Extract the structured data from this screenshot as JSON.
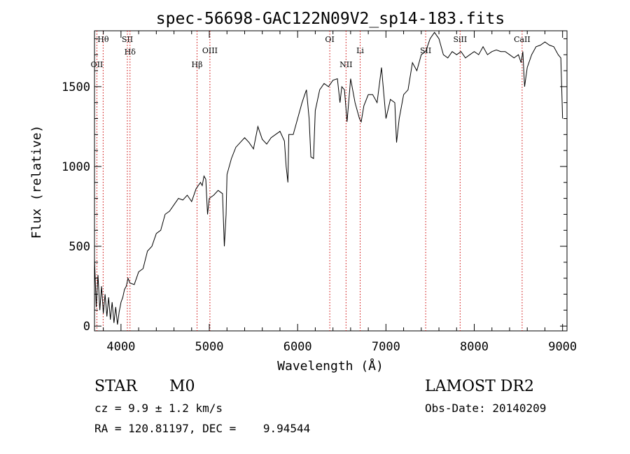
{
  "chart_data": {
    "type": "line",
    "title": "spec-56698-GAC122N09V2_sp14-183.fits",
    "xlabel": "Wavelength (Å)",
    "ylabel": "Flux (relative)",
    "xlim": [
      3700,
      9050
    ],
    "ylim": [
      -30,
      1850
    ],
    "xticks": [
      4000,
      5000,
      6000,
      7000,
      8000,
      9000
    ],
    "yticks": [
      0,
      500,
      1000,
      1500
    ],
    "grid": false,
    "line_color": "#000000",
    "marker_color": "#cc0000",
    "series": [
      {
        "x": [
          3700,
          3720,
          3740,
          3760,
          3780,
          3800,
          3820,
          3840,
          3860,
          3880,
          3900,
          3920,
          3940,
          3960,
          3980,
          4000,
          4020,
          4040,
          4060,
          4080,
          4100,
          4150,
          4200,
          4250,
          4300,
          4350,
          4400,
          4450,
          4500,
          4550,
          4600,
          4650,
          4700,
          4750,
          4800,
          4850,
          4900,
          4920,
          4940,
          4960,
          4980,
          5000,
          5050,
          5100,
          5150,
          5170,
          5190,
          5200,
          5250,
          5300,
          5350,
          5400,
          5450,
          5500,
          5550,
          5600,
          5650,
          5700,
          5750,
          5800,
          5850,
          5870,
          5890,
          5900,
          5950,
          6000,
          6050,
          6080,
          6100,
          6130,
          6150,
          6180,
          6200,
          6250,
          6300,
          6350,
          6400,
          6450,
          6480,
          6500,
          6530,
          6560,
          6600,
          6650,
          6700,
          6720,
          6750,
          6800,
          6850,
          6900,
          6950,
          7000,
          7050,
          7100,
          7120,
          7150,
          7200,
          7250,
          7300,
          7350,
          7400,
          7450,
          7500,
          7550,
          7600,
          7650,
          7700,
          7750,
          7800,
          7850,
          7900,
          7950,
          8000,
          8050,
          8100,
          8150,
          8200,
          8250,
          8300,
          8350,
          8400,
          8450,
          8500,
          8530,
          8550,
          8570,
          8600,
          8650,
          8700,
          8750,
          8800,
          8850,
          8900,
          8950,
          8980,
          9000
        ],
        "y": [
          420,
          120,
          320,
          100,
          250,
          80,
          200,
          60,
          180,
          40,
          150,
          20,
          120,
          10,
          90,
          150,
          180,
          230,
          250,
          300,
          270,
          260,
          340,
          360,
          470,
          500,
          580,
          600,
          700,
          720,
          760,
          800,
          790,
          820,
          780,
          860,
          900,
          880,
          940,
          920,
          700,
          800,
          820,
          850,
          830,
          500,
          700,
          950,
          1050,
          1120,
          1150,
          1180,
          1150,
          1110,
          1250,
          1170,
          1140,
          1180,
          1200,
          1220,
          1160,
          1000,
          900,
          1200,
          1200,
          1300,
          1400,
          1450,
          1480,
          1300,
          1060,
          1050,
          1350,
          1480,
          1520,
          1500,
          1540,
          1550,
          1400,
          1500,
          1480,
          1280,
          1550,
          1400,
          1300,
          1280,
          1380,
          1450,
          1450,
          1400,
          1620,
          1300,
          1420,
          1400,
          1150,
          1300,
          1450,
          1480,
          1650,
          1600,
          1700,
          1720,
          1800,
          1840,
          1800,
          1700,
          1680,
          1720,
          1700,
          1720,
          1680,
          1700,
          1720,
          1700,
          1750,
          1700,
          1720,
          1730,
          1720,
          1720,
          1700,
          1680,
          1700,
          1650,
          1720,
          1500,
          1620,
          1700,
          1750,
          1760,
          1780,
          1760,
          1750,
          1700,
          1680,
          1300
        ]
      }
    ],
    "lines": [
      {
        "label": "Hθ",
        "x": 3798
      },
      {
        "label": "OII",
        "x": 3727
      },
      {
        "label": "Hδ",
        "x": 4102
      },
      {
        "label": "SII",
        "x": 4072
      },
      {
        "label": "Hβ",
        "x": 4861
      },
      {
        "label": "OIII",
        "x": 5007
      },
      {
        "label": "OI",
        "x": 6364
      },
      {
        "label": "NII",
        "x": 6548
      },
      {
        "label": "Li",
        "x": 6708
      },
      {
        "label": "SII",
        "x": 7450
      },
      {
        "label": "SiII",
        "x": 7840
      },
      {
        "label": "CaII",
        "x": 8542
      }
    ]
  },
  "info": {
    "class": "STAR",
    "subclass": "M0",
    "cz": "cz = 9.9 ± 1.2 km/s",
    "radec": "RA = 120.81197, DEC =    9.94544",
    "survey": "LAMOST DR2",
    "obsdate": "Obs-Date: 20140209"
  }
}
